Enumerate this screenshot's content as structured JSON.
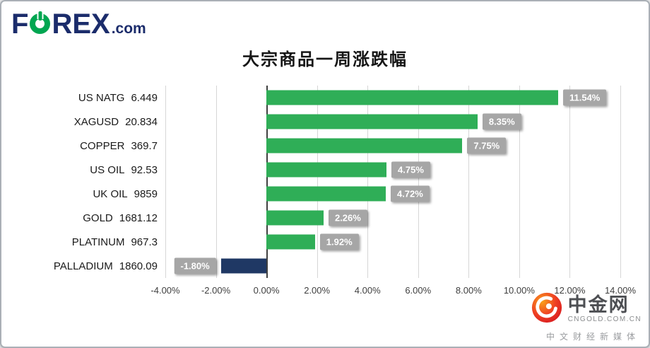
{
  "logo": {
    "prefix": "F",
    "o_letter": "O",
    "suffix": "REX",
    "tld": ".com"
  },
  "chart_data": {
    "type": "bar",
    "orientation": "horizontal",
    "title": "大宗商品一周涨跌幅",
    "categories": [
      "US NATG",
      "XAGUSD",
      "COPPER",
      "US OIL",
      "UK OIL",
      "GOLD",
      "PLATINUM",
      "PALLADIUM"
    ],
    "category_values": [
      "6.449",
      "20.834",
      "369.7",
      "92.53",
      "9859",
      "1681.12",
      "967.3",
      "1860.09"
    ],
    "values": [
      11.54,
      8.35,
      7.75,
      4.75,
      4.72,
      2.26,
      1.92,
      -1.8
    ],
    "value_labels": [
      "11.54%",
      "8.35%",
      "7.75%",
      "4.75%",
      "4.72%",
      "2.26%",
      "1.92%",
      "-1.80%"
    ],
    "xlim": [
      -4,
      14
    ],
    "x_ticks": [
      -4,
      -2,
      0,
      2,
      4,
      6,
      8,
      10,
      12,
      14
    ],
    "x_tick_labels": [
      "-4.00%",
      "-2.00%",
      "0.00%",
      "2.00%",
      "4.00%",
      "6.00%",
      "8.00%",
      "10.00%",
      "12.00%",
      "14.00%"
    ],
    "grid": true,
    "legend": false,
    "positive_color": "#2fae57",
    "negative_color": "#1f3864",
    "label_box_color": "#a6a6a6",
    "gridline_color": "#d6d6d6",
    "zero_line_color": "#404040"
  },
  "watermark": {
    "name": "中金网",
    "domain": "CNGOLD.COM.CN",
    "tagline": "中文财经新媒体"
  }
}
